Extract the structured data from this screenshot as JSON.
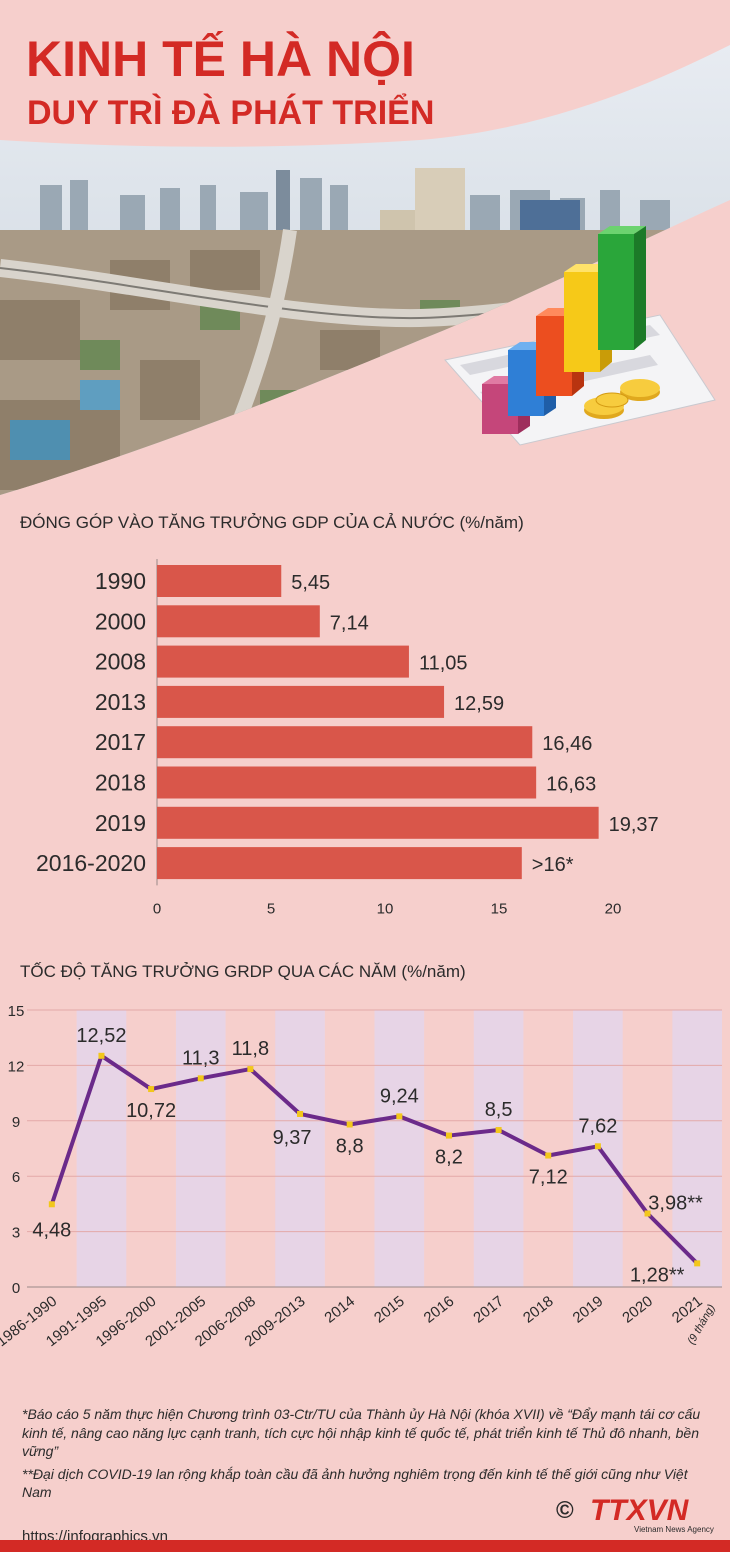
{
  "header": {
    "title": "KINH TẾ HÀ NỘI",
    "subtitle": "DUY TRÌ ĐÀ PHÁT TRIỂN"
  },
  "colors": {
    "accent": "#d32a25",
    "bar": "#d9564a",
    "line": "#6b2a8a",
    "marker": "#f2c71b",
    "stripe": "#e7d4e6"
  },
  "chart1": {
    "title": "ĐÓNG GÓP VÀO TĂNG TRƯỞNG GDP CỦA CẢ NƯỚC (%/năm)"
  },
  "chart2": {
    "title": "TỐC ĐỘ TĂNG TRƯỞNG GRDP QUA CÁC NĂM (%/năm)"
  },
  "chart_data": [
    {
      "type": "bar",
      "orientation": "horizontal",
      "title": "ĐÓNG GÓP VÀO TĂNG TRƯỞNG GDP CỦA CẢ NƯỚC (%/năm)",
      "categories": [
        "1990",
        "2000",
        "2008",
        "2013",
        "2017",
        "2018",
        "2019",
        "2016-2020"
      ],
      "values": [
        5.45,
        7.14,
        11.05,
        12.59,
        16.46,
        16.63,
        19.37,
        16
      ],
      "value_labels": [
        "5,45",
        "7,14",
        "11,05",
        "12,59",
        "16,46",
        "16,63",
        "19,37",
        ">16*"
      ],
      "xlim": [
        0,
        20
      ],
      "ticks": [
        "0",
        "5",
        "10",
        "15",
        "20"
      ],
      "grid": false
    },
    {
      "type": "line",
      "title": "TỐC ĐỘ TĂNG TRƯỞNG GRDP QUA CÁC NĂM (%/năm)",
      "categories": [
        "1986-1990",
        "1991-1995",
        "1996-2000",
        "2001-2005",
        "2006-2008",
        "2009-2013",
        "2014",
        "2015",
        "2016",
        "2017",
        "2018",
        "2019",
        "2020",
        "2021"
      ],
      "category_notes": [
        "",
        "",
        "",
        "",
        "",
        "",
        "",
        "",
        "",
        "",
        "",
        "",
        "",
        "(9 tháng)"
      ],
      "values": [
        4.48,
        12.52,
        10.72,
        11.3,
        11.8,
        9.37,
        8.8,
        9.24,
        8.2,
        8.5,
        7.12,
        7.62,
        3.98,
        1.28
      ],
      "value_labels": [
        "4,48",
        "12,52",
        "10,72",
        "11,3",
        "11,8",
        "9,37",
        "8,8",
        "9,24",
        "8,2",
        "8,5",
        "7,12",
        "7,62",
        "3,98**",
        "1,28**"
      ],
      "ylim": [
        0,
        15
      ],
      "yticks": [
        "0",
        "3",
        "6",
        "9",
        "12",
        "15"
      ],
      "grid": true
    }
  ],
  "footnotes": [
    "*Báo cáo 5 năm thực hiện Chương trình 03-Ctr/TU của Thành ủy Hà Nội (khóa XVII) về “Đẩy mạnh tái cơ cấu kinh tế, nâng cao năng lực cạnh tranh, tích cực hội nhập kinh tế quốc tế, phát triển kinh tế Thủ đô nhanh, bền vững”",
    "**Đại dịch COVID-19 lan rộng khắp toàn cầu đã ảnh hưởng nghiêm trọng đến kinh tế thế giới cũng như Việt Nam"
  ],
  "footer": {
    "url": "https://infographics.vn",
    "logo_text": "TTXVN",
    "logo_sub": "Vietnam News Agency",
    "copyright": "©"
  }
}
